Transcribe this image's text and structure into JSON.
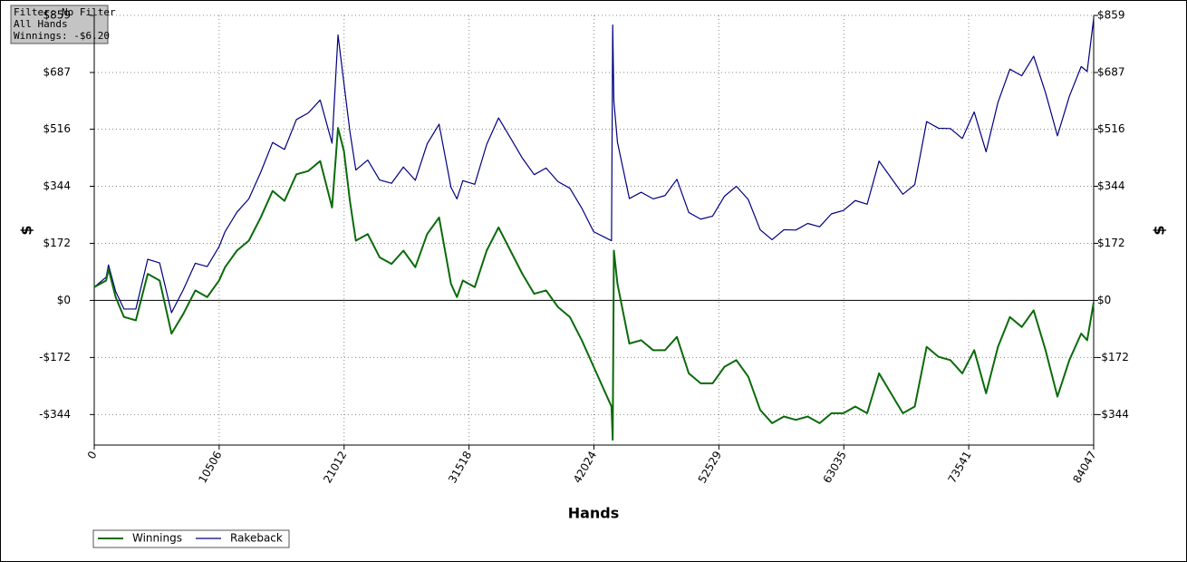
{
  "chart_data": {
    "type": "line",
    "annotations": [
      "Filter: No Filter",
      "All Hands",
      "Winnings: -$6.20"
    ],
    "xlabel": "Hands",
    "ylabel": "$",
    "y2label": "$",
    "xlim": [
      0,
      84047
    ],
    "xticks": [
      0,
      10506,
      21012,
      31518,
      42024,
      52529,
      63035,
      73541,
      84047
    ],
    "ylim": [
      -436,
      859
    ],
    "yticks": [
      {
        "value": -344,
        "label": "-$344"
      },
      {
        "value": -172,
        "label": "-$172"
      },
      {
        "value": 0,
        "label": "$0"
      },
      {
        "value": 172,
        "label": "$172"
      },
      {
        "value": 344,
        "label": "$344"
      },
      {
        "value": 516,
        "label": "$516"
      },
      {
        "value": 687,
        "label": "$687"
      },
      {
        "value": 859,
        "label": "$859"
      }
    ],
    "y2lim": [
      -436,
      859
    ],
    "y2ticks": [
      {
        "value": -344,
        "label": "-$344"
      },
      {
        "value": -172,
        "label": "-$172"
      },
      {
        "value": 0,
        "label": "$0"
      },
      {
        "value": 172,
        "label": "$172"
      },
      {
        "value": 344,
        "label": "$344"
      },
      {
        "value": 516,
        "label": "$516"
      },
      {
        "value": 687,
        "label": "$687"
      },
      {
        "value": 859,
        "label": "$859"
      }
    ],
    "grid": true,
    "legend": "bottom-left",
    "x": [
      0,
      1000,
      1200,
      1800,
      2500,
      3500,
      4500,
      5500,
      6500,
      7500,
      8500,
      9500,
      10500,
      11000,
      12000,
      13000,
      14000,
      15000,
      16000,
      17000,
      18000,
      19000,
      20000,
      20500,
      21000,
      21500,
      22000,
      23000,
      24000,
      25000,
      26000,
      27000,
      28000,
      29000,
      30000,
      30500,
      31000,
      32000,
      33000,
      34000,
      35000,
      36000,
      37000,
      38000,
      39000,
      40000,
      41000,
      42000,
      43500,
      43600,
      43700,
      44000,
      45000,
      46000,
      47000,
      48000,
      49000,
      50000,
      51000,
      52000,
      53000,
      54000,
      55000,
      56000,
      57000,
      58000,
      59000,
      60000,
      61000,
      62000,
      63000,
      64000,
      65000,
      66000,
      67000,
      68000,
      69000,
      70000,
      71000,
      72000,
      73000,
      74000,
      75000,
      76000,
      77000,
      78000,
      79000,
      80000,
      81000,
      82000,
      83000,
      83500,
      84047
    ],
    "series": [
      {
        "name": "Winnings",
        "color": "#0b6b0b",
        "values": [
          40,
          60,
          95,
          10,
          -50,
          -60,
          80,
          60,
          -100,
          -40,
          30,
          10,
          60,
          100,
          150,
          180,
          250,
          330,
          300,
          380,
          390,
          420,
          280,
          520,
          450,
          300,
          180,
          200,
          130,
          110,
          150,
          100,
          200,
          250,
          50,
          10,
          60,
          40,
          150,
          220,
          150,
          80,
          20,
          30,
          -20,
          -50,
          -120,
          -200,
          -320,
          -420,
          150,
          50,
          -130,
          -120,
          -150,
          -150,
          -110,
          -220,
          -250,
          -250,
          -200,
          -180,
          -230,
          -330,
          -370,
          -350,
          -360,
          -350,
          -370,
          -340,
          -340,
          -320,
          -340,
          -220,
          -280,
          -340,
          -320,
          -140,
          -170,
          -180,
          -220,
          -150,
          -280,
          -140,
          -50,
          -80,
          -30,
          -150,
          -290,
          -180,
          -100,
          -120,
          -6.2
        ]
      },
      {
        "name": "Rakeback",
        "color": "#000080",
        "values": [
          40,
          70,
          107,
          27,
          -26,
          -26,
          124,
          113,
          -37,
          33,
          112,
          102,
          162,
          207,
          266,
          306,
          386,
          476,
          455,
          545,
          565,
          604,
          474,
          800,
          654,
          509,
          393,
          423,
          363,
          353,
          402,
          362,
          472,
          531,
          341,
          306,
          361,
          350,
          470,
          550,
          490,
          429,
          379,
          399,
          358,
          338,
          278,
          207,
          180,
          830,
          600,
          477,
          307,
          326,
          306,
          316,
          365,
          265,
          245,
          254,
          314,
          344,
          304,
          213,
          183,
          213,
          212,
          232,
          222,
          261,
          271,
          301,
          290,
          420,
          370,
          320,
          349,
          539,
          519,
          518,
          488,
          568,
          448,
          597,
          697,
          677,
          736,
          626,
          496,
          615,
          705,
          690,
          850
        ]
      }
    ]
  }
}
